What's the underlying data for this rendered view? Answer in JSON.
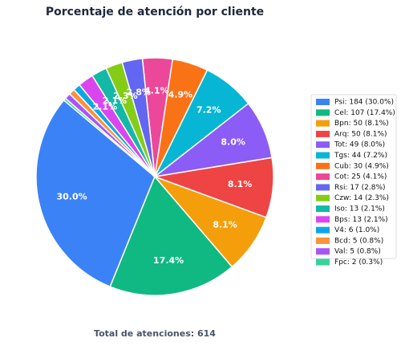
{
  "chart_data": {
    "type": "pie",
    "title": "Porcentaje de atención por cliente",
    "categories": [
      "Psi: 184 (30.0%)",
      "Cel: 107 (17.4%)",
      "Bpn: 50 (8.1%)",
      "Arq: 50 (8.1%)",
      "Tot: 49 (8.0%)",
      "Tgs: 44 (7.2%)",
      "Cub: 30 (4.9%)",
      "Cot: 25 (4.1%)",
      "Rsi: 17 (2.8%)",
      "Czw: 14 (2.3%)",
      "Iso: 13 (2.1%)",
      "Bps: 13 (2.1%)",
      "V4: 6 (1.0%)",
      "Bcd: 5 (0.8%)",
      "Val: 5 (0.8%)",
      "Fpc: 2 (0.3%)"
    ],
    "values": [
      184,
      107,
      50,
      50,
      49,
      44,
      30,
      25,
      17,
      14,
      13,
      13,
      6,
      5,
      5,
      2
    ],
    "value_labels": [
      "30.0%",
      "17.4%",
      "8.1%",
      "8.1%",
      "8.0%",
      "7.2%",
      "4.9%",
      "4.1%",
      "2.8%",
      "2.3%",
      "2.1%",
      "2.1%",
      null,
      null,
      null,
      null
    ],
    "colors": [
      "#3b82f6",
      "#10b981",
      "#f59e0b",
      "#ef4444",
      "#8b5cf6",
      "#06b6d4",
      "#f97316",
      "#ec4899",
      "#6366f1",
      "#84cc16",
      "#14b8a6",
      "#d946ef",
      "#0ea5e9",
      "#fb923c",
      "#a855f7",
      "#34d399"
    ],
    "legend": "right",
    "note": "Total de atenciones: 614"
  }
}
